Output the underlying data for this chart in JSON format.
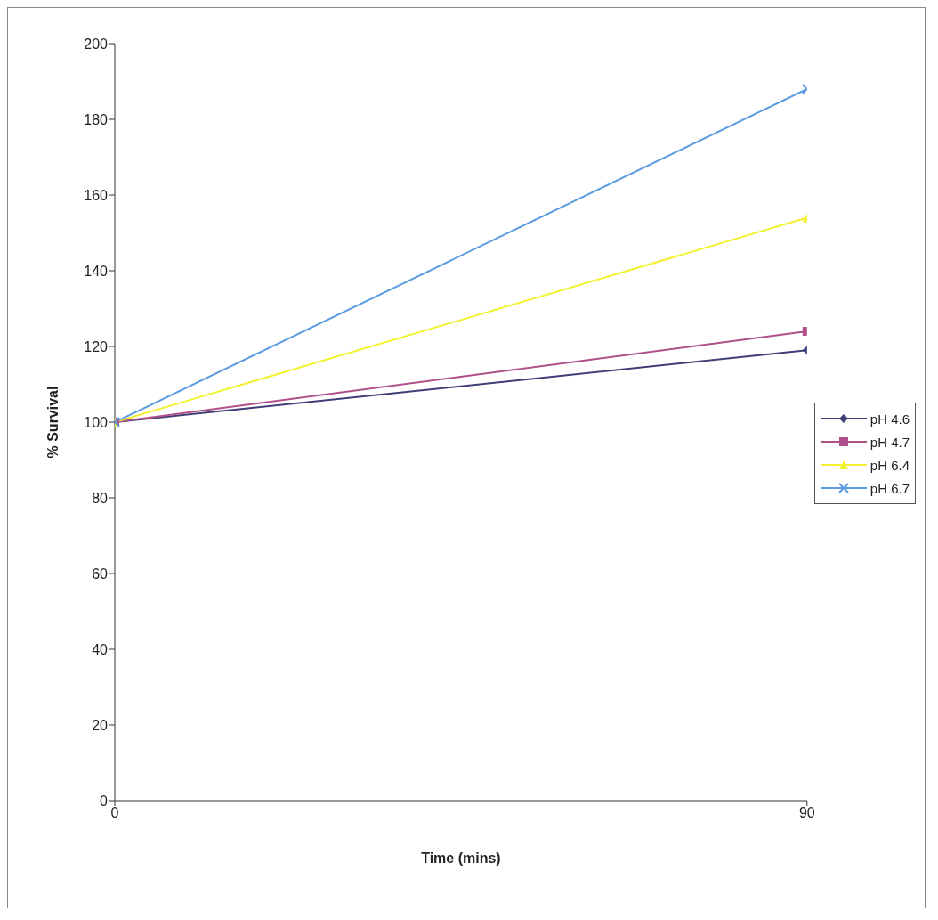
{
  "chart_data": {
    "type": "line",
    "xlabel": "Time (mins)",
    "ylabel": "% Survival",
    "x": [
      0,
      90
    ],
    "series": [
      {
        "name": "pH 4.6",
        "color": "#3f3f78",
        "marker": "diamond",
        "values": [
          100,
          119
        ]
      },
      {
        "name": "pH 4.7",
        "color": "#b0508a",
        "marker": "square",
        "values": [
          100,
          124
        ]
      },
      {
        "name": "pH 6.4",
        "color": "#f2f230",
        "marker": "triangle",
        "values": [
          100,
          154
        ]
      },
      {
        "name": "pH 6.7",
        "color": "#5b9be0",
        "marker": "cross",
        "values": [
          100,
          188
        ]
      }
    ],
    "xlim": [
      0,
      90
    ],
    "xticks": [
      0,
      90
    ],
    "ylim": [
      0,
      200
    ],
    "yticks": [
      0,
      20,
      40,
      60,
      80,
      100,
      120,
      140,
      160,
      180,
      200
    ],
    "legend": "right"
  }
}
